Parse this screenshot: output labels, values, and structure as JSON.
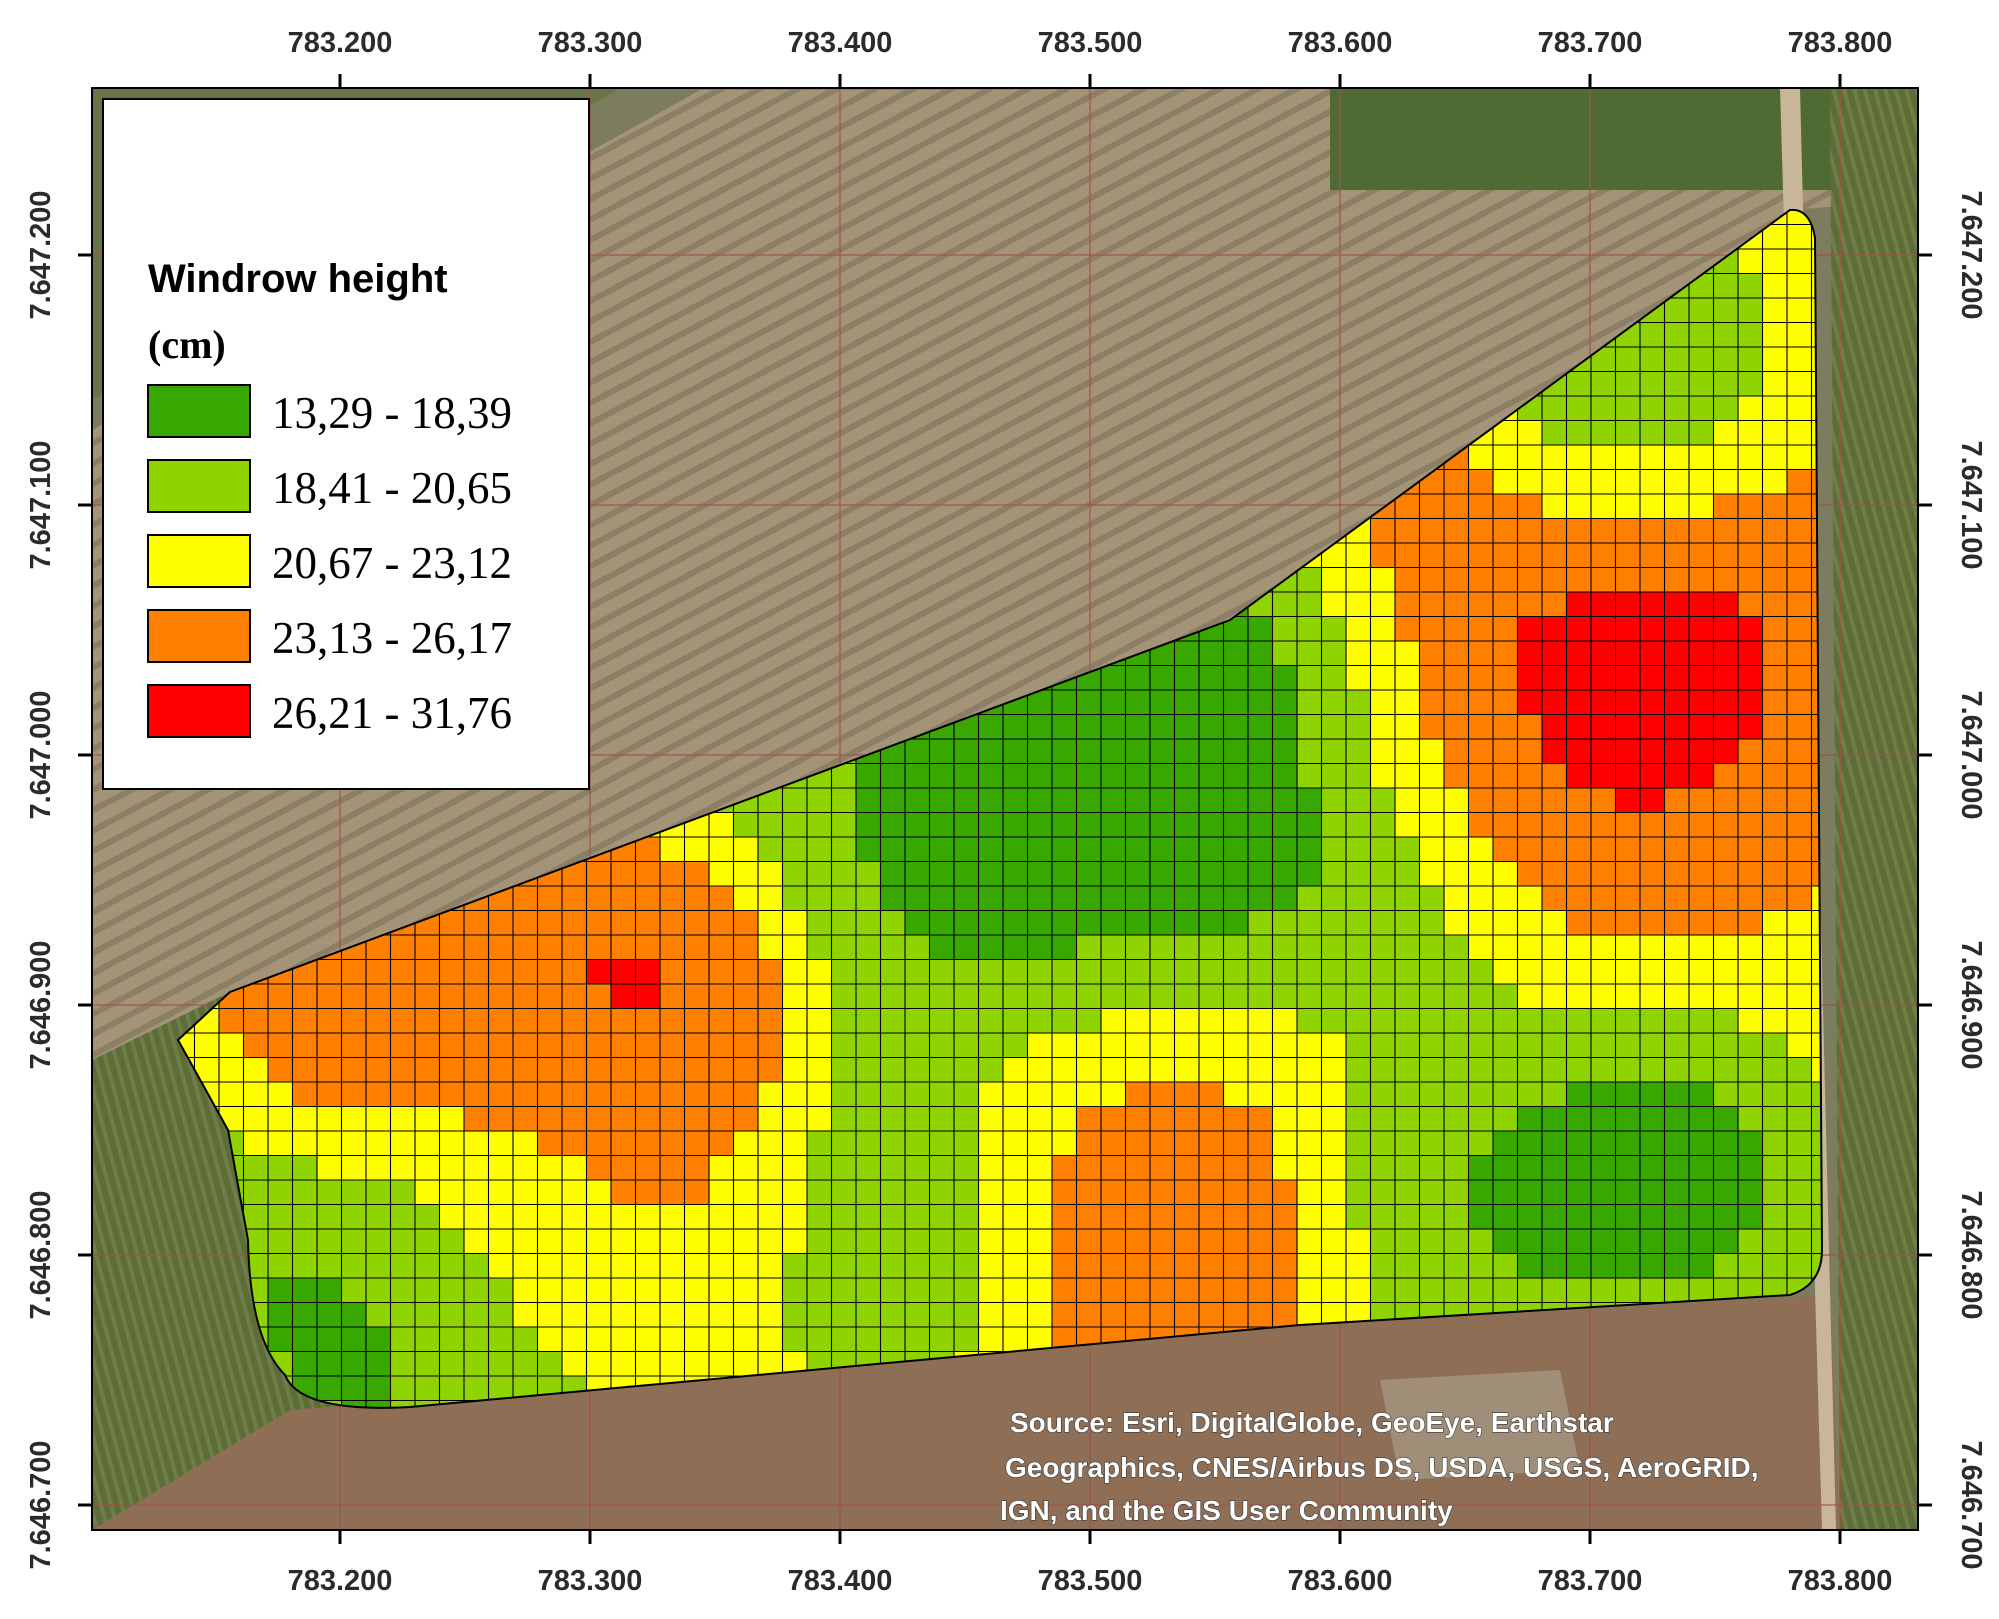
{
  "legend": {
    "title": "Windrow height",
    "unit": "(cm)",
    "classes": [
      {
        "label": "13,29 - 18,39",
        "color": "#38a800"
      },
      {
        "label": "18,41 - 20,65",
        "color": "#8fd400"
      },
      {
        "label": "20,67 - 23,12",
        "color": "#ffff00"
      },
      {
        "label": "23,13 - 26,17",
        "color": "#ff8000"
      },
      {
        "label": "26,21 - 31,76",
        "color": "#ff0000"
      }
    ]
  },
  "axes": {
    "x_ticks": [
      "783.200",
      "783.300",
      "783.400",
      "783.500",
      "783.600",
      "783.700",
      "783.800"
    ],
    "y_ticks": [
      "7.647.200",
      "7.647.100",
      "7.647.000",
      "7.646.900",
      "7.646.800",
      "7.646.700"
    ]
  },
  "attribution": {
    "line1": "Source: Esri, DigitalGlobe, GeoEye, Earthstar",
    "line2": "Geographics, CNES/Airbus DS, USDA, USGS, AeroGRID,",
    "line3": "IGN, and the GIS User Community"
  },
  "colors": {
    "imagery_soil": "#8b7d66",
    "imagery_field": "#a39377",
    "imagery_crop": "#5e6e3a",
    "grid_line": "#000000",
    "graticule": "#a0524a"
  }
}
